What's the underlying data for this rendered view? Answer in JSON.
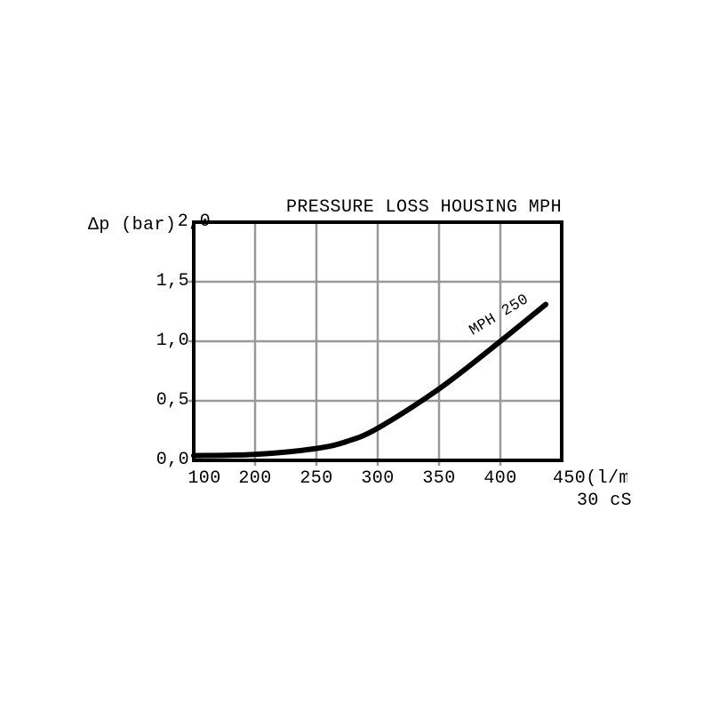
{
  "chart_data": {
    "type": "line",
    "title": "PRESSURE LOSS HOUSING MPH",
    "ylabel": "Δp (bar)",
    "xlabel": "",
    "x_tick_values": [
      100,
      200,
      250,
      300,
      350,
      400,
      450
    ],
    "x_tick_labels": [
      "100",
      "200",
      "250",
      "300",
      "350",
      "400",
      "450(l/m"
    ],
    "x_unit_note": "30 cS",
    "y_tick_values": [
      0,
      0.5,
      1,
      1.5,
      2
    ],
    "y_tick_labels": [
      "0,0",
      "0,5",
      "1,0",
      "1,5",
      "2,0"
    ],
    "ylim": [
      0,
      2
    ],
    "grid": true,
    "legend_position": "on-curve",
    "series": [
      {
        "name": "MPH 250",
        "points": [
          [
            100,
            0.04
          ],
          [
            200,
            0.05
          ],
          [
            250,
            0.1
          ],
          [
            275,
            0.16
          ],
          [
            300,
            0.27
          ],
          [
            350,
            0.6
          ],
          [
            400,
            1.0
          ],
          [
            437,
            1.31
          ]
        ]
      }
    ],
    "colors": {
      "curve": "#000000",
      "grid": "#999999",
      "frame": "#000000",
      "text": "#000000",
      "background": "#ffffff"
    }
  }
}
